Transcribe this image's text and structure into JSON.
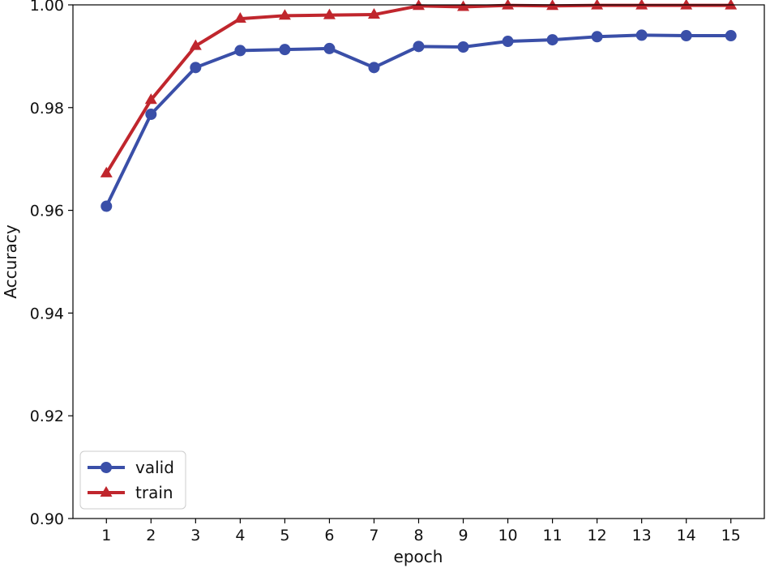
{
  "chart_data": {
    "type": "line",
    "title": "",
    "xlabel": "epoch",
    "ylabel": "Accuracy",
    "x": [
      1,
      2,
      3,
      4,
      5,
      6,
      7,
      8,
      9,
      10,
      11,
      12,
      13,
      14,
      15
    ],
    "xlim": [
      0.25,
      15.75
    ],
    "ylim": [
      0.9,
      1.0
    ],
    "xticks": [
      "1",
      "2",
      "3",
      "4",
      "5",
      "6",
      "7",
      "8",
      "9",
      "10",
      "11",
      "12",
      "13",
      "14",
      "15"
    ],
    "yticks": [
      {
        "value": 0.9,
        "label": "0.90"
      },
      {
        "value": 0.92,
        "label": "0.92"
      },
      {
        "value": 0.94,
        "label": "0.94"
      },
      {
        "value": 0.96,
        "label": "0.96"
      },
      {
        "value": 0.98,
        "label": "0.98"
      },
      {
        "value": 1.0,
        "label": "1.00"
      }
    ],
    "grid": false,
    "legend_position": "lower-left",
    "series": [
      {
        "name": "valid",
        "color": "#3a4fa8",
        "marker": "circle",
        "values": [
          0.9608,
          0.9787,
          0.9878,
          0.9911,
          0.9913,
          0.9915,
          0.9878,
          0.9919,
          0.9918,
          0.9929,
          0.9932,
          0.9938,
          0.9941,
          0.994,
          0.994
        ]
      },
      {
        "name": "train",
        "color": "#c0262d",
        "marker": "triangle",
        "values": [
          0.9672,
          0.9815,
          0.992,
          0.9973,
          0.9979,
          0.998,
          0.9981,
          0.9998,
          0.9996,
          0.9999,
          0.9998,
          0.9999,
          0.9999,
          0.9999,
          0.9999
        ]
      }
    ]
  }
}
